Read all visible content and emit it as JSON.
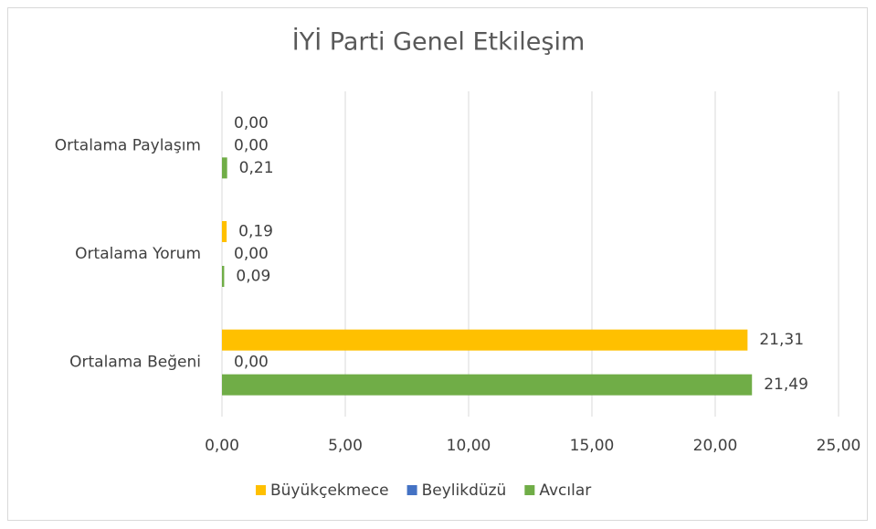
{
  "chart_data": {
    "type": "barh",
    "title": "İYİ Parti Genel Etkileşim",
    "categories": [
      "Ortalama Beğeni",
      "Ortalama Yorum",
      "Ortalama Paylaşım"
    ],
    "series": [
      {
        "name": "Büyükçekmece",
        "color": "#FFC000",
        "values": [
          21.31,
          0.19,
          0.0
        ],
        "value_labels": [
          "21,31",
          "0,19",
          "0,00"
        ]
      },
      {
        "name": "Beylikdüzü",
        "color": "#4472C4",
        "values": [
          0.0,
          0.0,
          0.0
        ],
        "value_labels": [
          "0,00",
          "0,00",
          "0,00"
        ]
      },
      {
        "name": "Avcılar",
        "color": "#70AD47",
        "values": [
          21.49,
          0.09,
          0.21
        ],
        "value_labels": [
          "21,49",
          "0,09",
          "0,21"
        ]
      }
    ],
    "xlim": [
      0,
      25
    ],
    "xticks": [
      {
        "value": 0,
        "label": "0,00"
      },
      {
        "value": 5,
        "label": "5,00"
      },
      {
        "value": 10,
        "label": "10,00"
      },
      {
        "value": 15,
        "label": "15,00"
      },
      {
        "value": 20,
        "label": "20,00"
      },
      {
        "value": 25,
        "label": "25,00"
      }
    ],
    "grid": true,
    "legend": "bottom"
  }
}
